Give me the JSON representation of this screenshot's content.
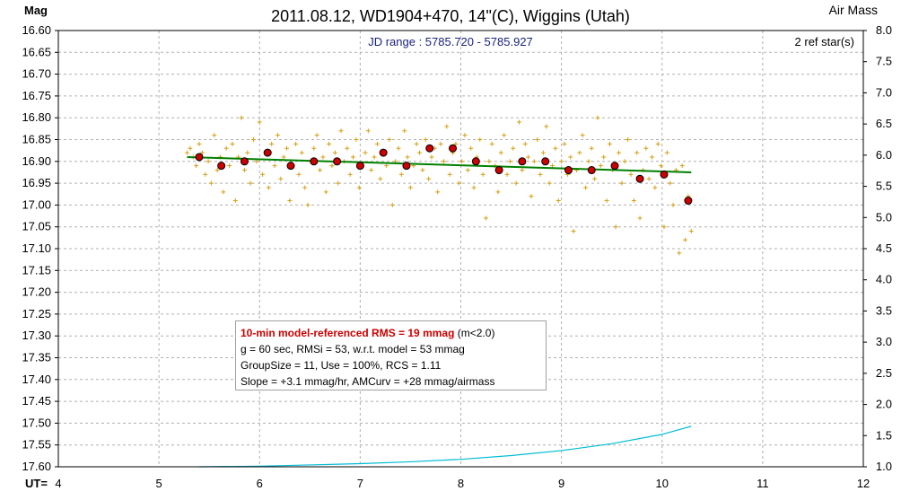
{
  "title": "2011.08.12, WD1904+470, 14\"(C), Wiggins (Utah)",
  "left_axis_label": "Mag",
  "right_axis_label": "Air Mass",
  "bottom_axis_prefix": "UT=",
  "jd_range_text": "JD range : 5785.720 - 5785.927",
  "ref_stars_text": "2 ref star(s)",
  "info": {
    "rms_highlight": "10-min model-referenced RMS = 19 mmag",
    "rms_suffix": " (m<2.0)",
    "line2": "g = 60 sec, RMSi = 53, w.r.t. model = 53 mmag",
    "line3": "GroupSize = 11, Use = 100%, RCS = 1.11",
    "line4": "Slope = +3.1 mmag/hr, AMCurv = +28 mmag/airmass"
  },
  "colors": {
    "raw_points": "#d4a017",
    "binned_points": "#cc0000",
    "model_line": "#008000",
    "airmass_line": "#00bcd4",
    "grid": "#b0b0b0"
  },
  "chart_data": {
    "type": "scatter",
    "title": "2011.08.12, WD1904+470, 14\"(C), Wiggins (Utah)",
    "xlabel": "UT=",
    "ylabel": "Mag",
    "y2label": "Air Mass",
    "xlim": [
      4,
      12
    ],
    "ylim": [
      16.6,
      17.6
    ],
    "y_inverted": true,
    "y2lim": [
      1.0,
      8.0
    ],
    "grid": true,
    "x_ticks": [
      "4",
      "5",
      "6",
      "7",
      "8",
      "9",
      "10",
      "11",
      "12"
    ],
    "y_ticks": [
      "16.60",
      "16.65",
      "16.70",
      "16.75",
      "16.80",
      "16.85",
      "16.90",
      "16.95",
      "17.00",
      "17.05",
      "17.10",
      "17.15",
      "17.20",
      "17.25",
      "17.30",
      "17.35",
      "17.40",
      "17.45",
      "17.50",
      "17.55",
      "17.60"
    ],
    "y2_ticks": [
      "8.0",
      "7.5",
      "7.0",
      "6.5",
      "6.0",
      "5.5",
      "5.0",
      "4.5",
      "4.0",
      "3.5",
      "3.0",
      "2.5",
      "2.0",
      "1.5",
      "1.0"
    ],
    "series": [
      {
        "type": "scatter",
        "marker": "plus",
        "x": [
          5.28,
          5.31,
          5.34,
          5.37,
          5.4,
          5.43,
          5.46,
          5.49,
          5.52,
          5.55,
          5.58,
          5.61,
          5.64,
          5.67,
          5.7,
          5.73,
          5.76,
          5.79,
          5.82,
          5.85,
          5.88,
          5.91,
          5.94,
          5.97,
          6.0,
          6.03,
          6.06,
          6.09,
          6.12,
          6.15,
          6.18,
          6.21,
          6.24,
          6.27,
          6.3,
          6.33,
          6.36,
          6.39,
          6.42,
          6.45,
          6.48,
          6.51,
          6.54,
          6.57,
          6.6,
          6.63,
          6.66,
          6.69,
          6.72,
          6.75,
          6.78,
          6.81,
          6.84,
          6.87,
          6.9,
          6.93,
          6.96,
          6.99,
          7.02,
          7.05,
          7.08,
          7.11,
          7.14,
          7.17,
          7.2,
          7.23,
          7.26,
          7.29,
          7.32,
          7.35,
          7.38,
          7.41,
          7.44,
          7.47,
          7.5,
          7.53,
          7.56,
          7.59,
          7.62,
          7.65,
          7.68,
          7.71,
          7.74,
          7.77,
          7.8,
          7.83,
          7.86,
          7.89,
          7.92,
          7.95,
          7.98,
          8.01,
          8.04,
          8.07,
          8.1,
          8.13,
          8.16,
          8.19,
          8.22,
          8.25,
          8.28,
          8.31,
          8.34,
          8.37,
          8.4,
          8.43,
          8.46,
          8.49,
          8.52,
          8.55,
          8.58,
          8.61,
          8.64,
          8.67,
          8.7,
          8.73,
          8.76,
          8.79,
          8.82,
          8.85,
          8.88,
          8.91,
          8.94,
          8.97,
          9.0,
          9.03,
          9.06,
          9.09,
          9.12,
          9.15,
          9.18,
          9.21,
          9.24,
          9.27,
          9.3,
          9.33,
          9.36,
          9.39,
          9.42,
          9.45,
          9.48,
          9.51,
          9.54,
          9.57,
          9.6,
          9.63,
          9.66,
          9.69,
          9.72,
          9.75,
          9.78,
          9.81,
          9.84,
          9.87,
          9.9,
          9.93,
          9.96,
          9.99,
          10.02,
          10.05,
          10.08,
          10.11,
          10.14,
          10.17,
          10.2,
          10.23,
          10.26,
          10.29
        ],
        "y": [
          16.88,
          16.87,
          16.89,
          16.91,
          16.86,
          16.88,
          16.93,
          16.9,
          16.95,
          16.84,
          16.92,
          16.89,
          16.97,
          16.87,
          16.91,
          16.86,
          16.99,
          16.89,
          16.8,
          16.92,
          16.88,
          16.95,
          16.85,
          16.9,
          16.81,
          16.93,
          16.88,
          16.96,
          16.86,
          16.91,
          16.84,
          16.94,
          16.89,
          16.87,
          16.99,
          16.91,
          16.86,
          16.93,
          16.88,
          16.96,
          17.0,
          16.9,
          16.87,
          16.84,
          16.92,
          16.89,
          16.97,
          16.86,
          16.91,
          16.88,
          16.95,
          16.83,
          16.9,
          16.87,
          16.93,
          16.89,
          16.85,
          16.96,
          16.91,
          16.88,
          16.83,
          16.92,
          16.89,
          16.86,
          16.94,
          16.88,
          16.91,
          16.85,
          17.0,
          16.9,
          16.87,
          16.93,
          16.83,
          16.89,
          16.96,
          16.91,
          16.86,
          16.88,
          16.92,
          16.85,
          16.94,
          16.89,
          16.87,
          16.97,
          16.86,
          16.9,
          16.82,
          16.93,
          16.88,
          16.86,
          16.95,
          16.9,
          16.84,
          16.92,
          16.87,
          16.96,
          16.89,
          16.85,
          16.93,
          17.03,
          16.9,
          16.86,
          16.91,
          16.97,
          16.88,
          16.84,
          16.93,
          16.9,
          16.87,
          16.95,
          16.81,
          16.92,
          16.86,
          16.89,
          16.98,
          16.9,
          16.85,
          16.93,
          16.88,
          16.82,
          16.95,
          16.91,
          16.87,
          16.99,
          16.9,
          16.86,
          16.93,
          16.89,
          17.06,
          16.92,
          16.88,
          16.84,
          16.96,
          16.9,
          16.87,
          16.94,
          16.8,
          16.91,
          16.89,
          16.99,
          16.86,
          16.92,
          17.05,
          16.88,
          16.95,
          16.9,
          16.85,
          16.93,
          16.99,
          16.88,
          17.03,
          16.92,
          16.87,
          16.94,
          16.89,
          16.96,
          16.86,
          16.91,
          17.05,
          16.88,
          16.95,
          17.0,
          16.92,
          17.11,
          16.91,
          17.08,
          16.98,
          17.06
        ],
        "color": "#d4a017"
      },
      {
        "type": "scatter",
        "marker": "circle",
        "x": [
          5.4,
          5.62,
          5.85,
          6.08,
          6.31,
          6.54,
          6.77,
          7.0,
          7.23,
          7.46,
          7.69,
          7.92,
          8.15,
          8.38,
          8.61,
          8.84,
          9.07,
          9.3,
          9.53,
          9.78,
          10.02,
          10.26
        ],
        "y": [
          16.89,
          16.91,
          16.9,
          16.88,
          16.91,
          16.9,
          16.9,
          16.91,
          16.88,
          16.91,
          16.87,
          16.87,
          16.9,
          16.92,
          16.9,
          16.9,
          16.92,
          16.92,
          16.91,
          16.94,
          16.93,
          16.99
        ],
        "color": "#cc0000"
      },
      {
        "type": "line",
        "x": [
          5.28,
          10.29
        ],
        "y": [
          16.89,
          16.925
        ],
        "color": "#008000"
      },
      {
        "type": "line",
        "axis": "right",
        "x": [
          5.4,
          6.0,
          6.5,
          7.0,
          7.5,
          8.0,
          8.5,
          9.0,
          9.5,
          10.0,
          10.29
        ],
        "y": [
          1.0,
          1.01,
          1.03,
          1.05,
          1.08,
          1.12,
          1.18,
          1.26,
          1.37,
          1.52,
          1.65
        ],
        "color": "#00bcd4"
      }
    ]
  }
}
